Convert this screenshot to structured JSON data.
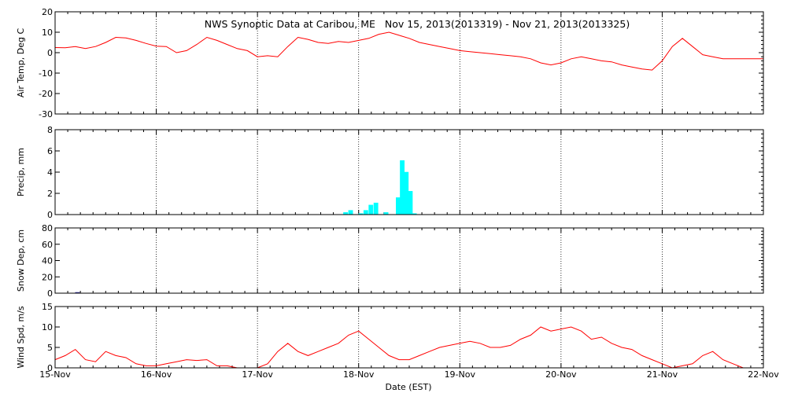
{
  "chart_data": {
    "title": "NWS Synoptic Data at Caribou, ME   Nov 15, 2013(2013319) - Nov 21, 2013(2013325)",
    "xlabel": "Date (EST)",
    "x_tick_labels": [
      "15-Nov",
      "16-Nov",
      "17-Nov",
      "18-Nov",
      "19-Nov",
      "20-Nov",
      "21-Nov",
      "22-Nov"
    ],
    "x_range_days": [
      0,
      7
    ],
    "panels": [
      {
        "type": "line",
        "ylabel": "Air Temp, Deg C",
        "ylim": [
          -30,
          20
        ],
        "yticks": [
          -30,
          -20,
          -10,
          0,
          10,
          20
        ],
        "series": [
          {
            "color": "#ff0000",
            "x": [
              0,
              0.1,
              0.2,
              0.3,
              0.4,
              0.5,
              0.6,
              0.7,
              0.8,
              0.9,
              1.0,
              1.1,
              1.2,
              1.3,
              1.4,
              1.5,
              1.6,
              1.7,
              1.8,
              1.9,
              2.0,
              2.1,
              2.2,
              2.3,
              2.4,
              2.5,
              2.6,
              2.7,
              2.8,
              2.9,
              3.0,
              3.1,
              3.2,
              3.3,
              3.4,
              3.5,
              3.6,
              3.7,
              3.8,
              3.9,
              4.0,
              4.1,
              4.2,
              4.3,
              4.4,
              4.5,
              4.6,
              4.7,
              4.8,
              4.9,
              5.0,
              5.1,
              5.2,
              5.3,
              5.4,
              5.5,
              5.6,
              5.7,
              5.8,
              5.9,
              6.0,
              6.1,
              6.2,
              6.3,
              6.4,
              6.5,
              6.6,
              6.7,
              6.8,
              6.9,
              7.0
            ],
            "values": [
              2.5,
              2.4,
              3,
              2,
              3,
              5,
              7.5,
              7.2,
              6,
              4.5,
              3.2,
              3,
              0,
              1,
              4,
              7.5,
              6,
              4,
              2,
              1,
              -2,
              -1.5,
              -2,
              3,
              7.5,
              6.5,
              5,
              4.5,
              5.5,
              5,
              6,
              7,
              9,
              10,
              8.5,
              7,
              5,
              4,
              3,
              2,
              1,
              0.5,
              0,
              -0.5,
              -1,
              -1.5,
              -2,
              -3,
              -5,
              -6,
              -5,
              -3,
              -2,
              -3,
              -4,
              -4.5,
              -6,
              -7,
              -8,
              -8.5,
              -4,
              3,
              7,
              3,
              -1,
              -2,
              -3,
              -3,
              -3,
              -3,
              -3
            ]
          }
        ]
      },
      {
        "type": "bar",
        "ylabel": "Precip, mm",
        "ylim": [
          0,
          8
        ],
        "yticks": [
          0,
          2,
          4,
          6,
          8
        ],
        "color": "#00ffff",
        "x": [
          2.85,
          2.9,
          3.0,
          3.05,
          3.1,
          3.15,
          3.25,
          3.37,
          3.41,
          3.45,
          3.49,
          3.53
        ],
        "values": [
          0.2,
          0.4,
          0.1,
          0.4,
          0.9,
          1.1,
          0.2,
          1.6,
          5.1,
          4.0,
          2.2,
          0.1
        ]
      },
      {
        "type": "bar",
        "ylabel": "Snow Dep, cm",
        "ylim": [
          0,
          80
        ],
        "yticks": [
          0,
          20,
          40,
          60,
          80
        ],
        "color": "#3a36a8",
        "x": [
          0.2
        ],
        "values": [
          1
        ]
      },
      {
        "type": "line",
        "ylabel": "Wind Spd, m/s",
        "ylim": [
          0,
          15
        ],
        "yticks": [
          0,
          5,
          10,
          15
        ],
        "series": [
          {
            "color": "#ff0000",
            "x": [
              0,
              0.1,
              0.2,
              0.3,
              0.4,
              0.5,
              0.6,
              0.7,
              0.8,
              0.9,
              1.0,
              1.1,
              1.2,
              1.3,
              1.4,
              1.5,
              1.6,
              1.7,
              1.8,
              1.9,
              2.0,
              2.1,
              2.2,
              2.3,
              2.4,
              2.5,
              2.6,
              2.7,
              2.8,
              2.9,
              3.0,
              3.1,
              3.2,
              3.3,
              3.4,
              3.5,
              3.6,
              3.7,
              3.8,
              3.9,
              4.0,
              4.1,
              4.2,
              4.3,
              4.4,
              4.5,
              4.6,
              4.7,
              4.8,
              4.9,
              5.0,
              5.1,
              5.2,
              5.3,
              5.4,
              5.5,
              5.6,
              5.7,
              5.8,
              5.9,
              6.0,
              6.1,
              6.2,
              6.3,
              6.4,
              6.5,
              6.6,
              6.7,
              6.8,
              6.9,
              7.0
            ],
            "values": [
              2,
              3,
              4.5,
              2,
              1.5,
              4,
              3,
              2.5,
              1,
              0.5,
              0.5,
              1,
              1.5,
              2,
              1.8,
              2,
              0.5,
              0.5,
              0,
              0,
              0,
              1,
              4,
              6,
              4,
              3,
              4,
              5,
              6,
              8,
              9,
              7,
              5,
              3,
              2,
              2,
              3,
              4,
              5,
              5.5,
              6,
              6.5,
              6,
              5,
              5,
              5.5,
              7,
              8,
              10,
              9,
              9.5,
              10,
              9,
              7,
              7.5,
              6,
              5,
              4.5,
              3,
              2,
              1,
              0,
              0.5,
              1,
              3,
              4,
              2,
              1,
              0,
              0,
              0
            ]
          }
        ]
      }
    ]
  }
}
